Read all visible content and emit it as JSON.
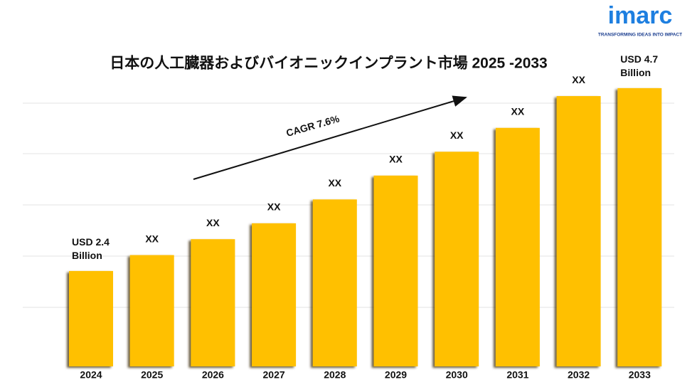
{
  "chart_data": {
    "type": "bar",
    "title": "日本の人工臓器およびバイオニックインプラント市場 2025 -2033",
    "categories": [
      "2024",
      "2025",
      "2026",
      "2027",
      "2028",
      "2029",
      "2030",
      "2031",
      "2032",
      "2033"
    ],
    "values": [
      2.4,
      2.6,
      2.8,
      3.0,
      3.3,
      3.6,
      3.9,
      4.2,
      4.6,
      4.7
    ],
    "value_labels": [
      "USD 2.4 Billion",
      "XX",
      "XX",
      "XX",
      "XX",
      "XX",
      "XX",
      "XX",
      "XX",
      "USD 4.7 Billion"
    ],
    "color": "#ffc000",
    "ylim": [
      1.2,
      5.2
    ],
    "annotation": "CAGR 7.6%"
  },
  "logo": {
    "name": "imarc",
    "tagline": "TRANSFORMING IDEAS INTO IMPACT"
  }
}
